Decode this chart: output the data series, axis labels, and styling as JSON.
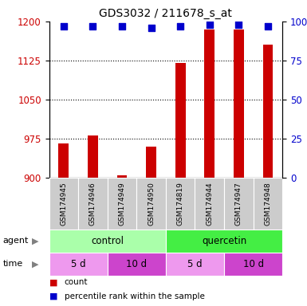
{
  "title": "GDS3032 / 211678_s_at",
  "samples": [
    "GSM174945",
    "GSM174946",
    "GSM174949",
    "GSM174950",
    "GSM174819",
    "GSM174944",
    "GSM174947",
    "GSM174948"
  ],
  "counts": [
    965,
    980,
    904,
    960,
    1120,
    1185,
    1185,
    1155
  ],
  "percentiles": [
    97,
    97,
    97,
    96,
    97,
    98,
    98,
    97
  ],
  "ylim_left": [
    900,
    1200
  ],
  "ylim_right": [
    0,
    100
  ],
  "yticks_left": [
    900,
    975,
    1050,
    1125,
    1200
  ],
  "yticks_right": [
    0,
    25,
    50,
    75,
    100
  ],
  "bar_color": "#cc0000",
  "dot_color": "#0000cc",
  "grid_color": "#000000",
  "agent_control_color": "#aaffaa",
  "agent_quercetin_color": "#44ee44",
  "time_5d_color": "#ee99ee",
  "time_10d_color": "#cc44cc",
  "sample_bg_color": "#cccccc",
  "agent_label": "agent",
  "time_label": "time",
  "control_label": "control",
  "quercetin_label": "quercetin",
  "legend_count_label": "count",
  "legend_pct_label": "percentile rank within the sample",
  "dot_size": 35,
  "bar_width": 0.35
}
